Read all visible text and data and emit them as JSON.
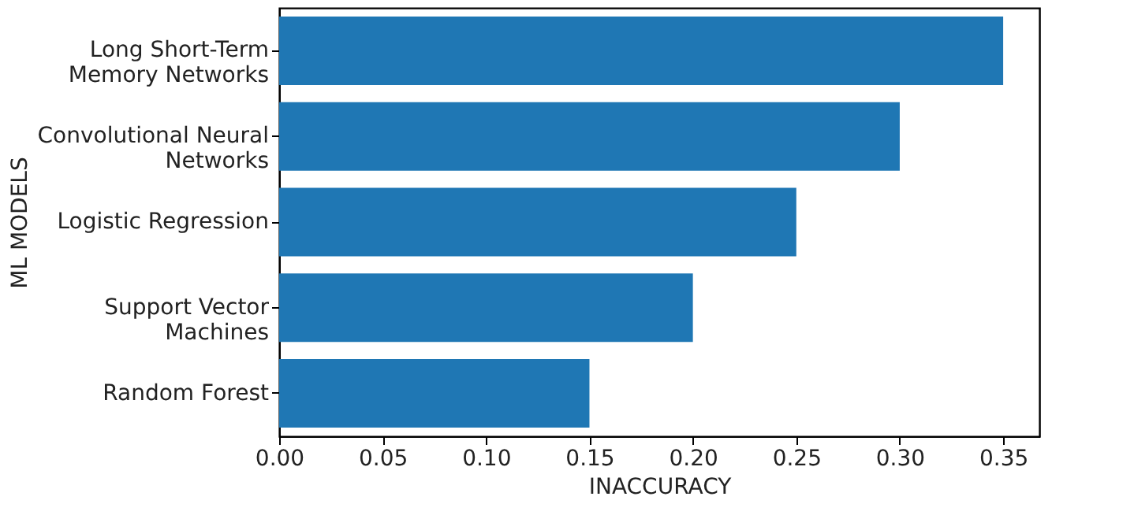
{
  "chart_data": {
    "type": "bar",
    "orientation": "horizontal",
    "xlabel": "INACCURACY",
    "ylabel": "ML MODELS",
    "categories": [
      "Long Short-Term\nMemory Networks",
      "Convolutional Neural\nNetworks",
      "Logistic Regression",
      "Support Vector\nMachines",
      "Random Forest"
    ],
    "values": [
      0.35,
      0.3,
      0.25,
      0.2,
      0.15
    ],
    "color": "#1f77b4",
    "xlim": [
      0,
      0.3675
    ],
    "xticks": [
      {
        "value": 0,
        "label": "0.00"
      },
      {
        "value": 0.05,
        "label": "0.05"
      },
      {
        "value": 0.1,
        "label": "0.10"
      },
      {
        "value": 0.15,
        "label": "0.15"
      },
      {
        "value": 0.2,
        "label": "0.20"
      },
      {
        "value": 0.25,
        "label": "0.25"
      },
      {
        "value": 0.3,
        "label": "0.30"
      },
      {
        "value": 0.35,
        "label": "0.35"
      }
    ],
    "grid": false
  }
}
